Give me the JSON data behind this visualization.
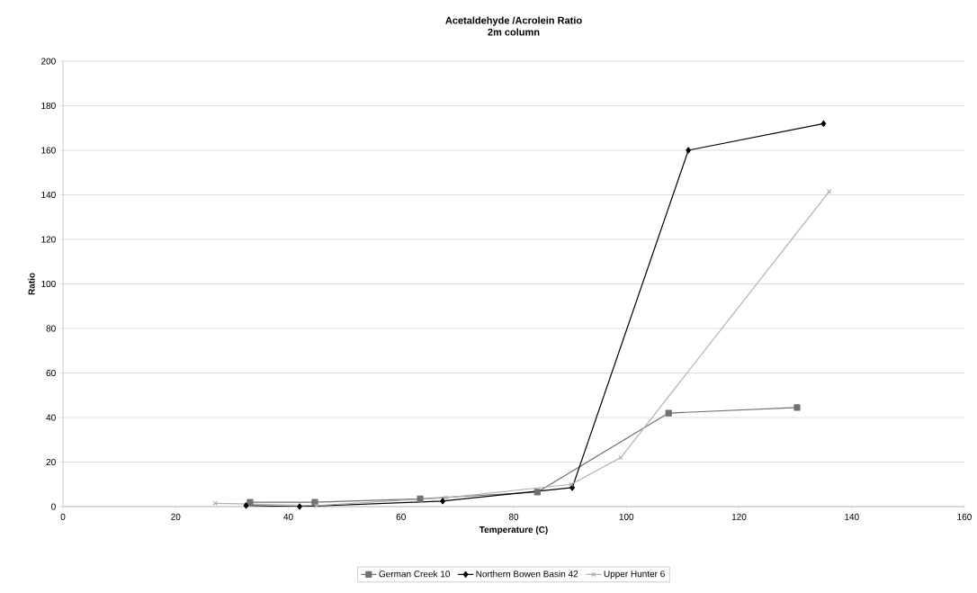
{
  "chart_data": {
    "type": "line",
    "title": "Acetaldehyde /Acrolein Ratio",
    "subtitle": "2m column",
    "xlabel": "Temperature (C)",
    "ylabel": "Ratio",
    "xlim": [
      0,
      160
    ],
    "xticks": [
      0,
      20,
      40,
      60,
      80,
      100,
      120,
      140,
      160
    ],
    "ylim": [
      0,
      200
    ],
    "yticks": [
      0,
      20,
      40,
      60,
      80,
      100,
      120,
      140,
      160,
      180,
      200
    ],
    "grid": "y",
    "legend": "bottom",
    "series": [
      {
        "name": "German Creek 10",
        "color": "#707070",
        "marker": "square",
        "x": [
          33.2,
          44.7,
          63.4,
          84.2,
          107.5,
          130.3
        ],
        "values": [
          2,
          2,
          3.5,
          6.5,
          42,
          44.5
        ]
      },
      {
        "name": "Northern Bowen Basin 42",
        "color": "#000000",
        "marker": "diamond",
        "x": [
          32.5,
          42,
          67.4,
          90.4,
          111,
          135
        ],
        "values": [
          0.5,
          0,
          2.5,
          8.5,
          160,
          172
        ]
      },
      {
        "name": "Upper Hunter 6",
        "color": "#b0b0b0",
        "marker": "cross",
        "x": [
          27,
          45,
          68,
          90.2,
          99,
          136
        ],
        "values": [
          1.5,
          0.5,
          4,
          10,
          22,
          141.5
        ]
      }
    ]
  }
}
